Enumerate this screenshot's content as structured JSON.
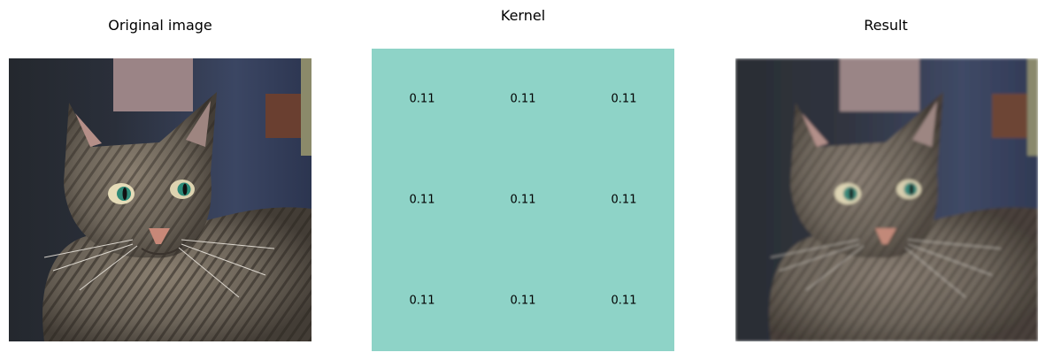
{
  "titles": {
    "left": "Original image",
    "middle": "Kernel",
    "right": "Result"
  },
  "chart_data": {
    "type": "heatmap",
    "title": "Kernel",
    "rows": 3,
    "cols": 3,
    "values": [
      [
        0.11,
        0.11,
        0.11
      ],
      [
        0.11,
        0.11,
        0.11
      ],
      [
        0.11,
        0.11,
        0.11
      ]
    ],
    "cell_labels": [
      [
        "0.11",
        "0.11",
        "0.11"
      ],
      [
        "0.11",
        "0.11",
        "0.11"
      ],
      [
        "0.11",
        "0.11",
        "0.11"
      ]
    ],
    "colormap_color": "#8ed3c7",
    "axes_visible": false
  },
  "images": {
    "original": {
      "subject": "tabby cat photo"
    },
    "result": {
      "subject": "blurred tabby cat photo"
    }
  }
}
